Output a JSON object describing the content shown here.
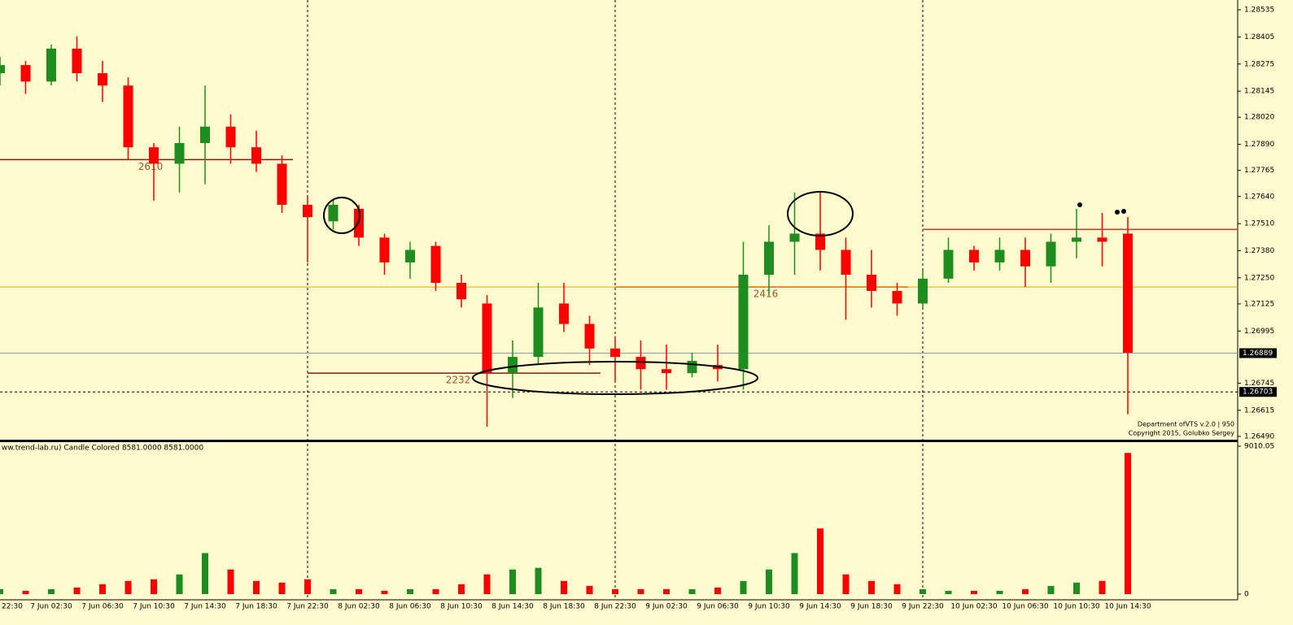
{
  "chart_data": {
    "type": "candlestick",
    "indicator_title": "ww.trend-lab.ru) Candle Colored 8581.0000 8581.0000",
    "notes": [
      "Department ofVTS  v.2.0 | 950",
      "Copyright 2015, Golubko Sergey"
    ],
    "categories": [
      "22:30",
      null,
      "7 Jun 02:30",
      null,
      "7 Jun 06:30",
      null,
      "7 Jun 10:30",
      null,
      "7 Jun 14:30",
      null,
      "7 Jun 18:30",
      null,
      "7 Jun 22:30",
      null,
      "8 Jun 02:30",
      null,
      "8 Jun 06:30",
      null,
      "8 Jun 10:30",
      null,
      "8 Jun 14:30",
      null,
      "8 Jun 18:30",
      null,
      "8 Jun 22:30",
      null,
      "9 Jun 02:30",
      null,
      "9 Jun 06:30",
      null,
      "9 Jun 10:30",
      null,
      "9 Jun 14:30",
      null,
      "9 Jun 18:30",
      null,
      "9 Jun 22:30",
      null,
      "10 Jun 02:30",
      null,
      "10 Jun 06:30",
      null,
      "10 Jun 10:30",
      null,
      "10 Jun 14:30"
    ],
    "open": [
      1.28231,
      1.2827,
      1.28191,
      1.28349,
      1.28231,
      1.28172,
      1.27876,
      1.27797,
      1.27896,
      1.27975,
      1.27876,
      1.27797,
      1.276,
      1.27521,
      1.27581,
      1.27443,
      1.27324,
      1.27403,
      1.27226,
      1.27127,
      1.26793,
      1.26871,
      1.27127,
      1.27029,
      1.26911,
      1.26871,
      1.26812,
      1.26793,
      1.26832,
      1.26812,
      1.27265,
      1.27423,
      1.27462,
      1.27384,
      1.27265,
      1.27187,
      1.27127,
      1.27246,
      1.27384,
      1.27324,
      1.27384,
      1.27305,
      1.27423,
      1.27443,
      1.27462
    ],
    "high": [
      1.28309,
      1.2829,
      1.28369,
      1.28408,
      1.2829,
      1.28211,
      1.27896,
      1.27975,
      1.28172,
      1.28034,
      1.27955,
      1.27837,
      1.2764,
      1.27628,
      1.276,
      1.27462,
      1.27423,
      1.27423,
      1.27265,
      1.27167,
      1.2695,
      1.27226,
      1.27226,
      1.27068,
      1.2697,
      1.2695,
      1.2693,
      1.26891,
      1.2693,
      1.27423,
      1.27502,
      1.27659,
      1.27659,
      1.27443,
      1.27384,
      1.27226,
      1.27285,
      1.27443,
      1.27403,
      1.27443,
      1.27443,
      1.27462,
      1.27581,
      1.27561,
      1.27541
    ],
    "low": [
      1.28172,
      1.28132,
      1.28172,
      1.28191,
      1.28093,
      1.27817,
      1.2762,
      1.27659,
      1.27699,
      1.27797,
      1.27758,
      1.27561,
      1.27324,
      1.27482,
      1.27403,
      1.27265,
      1.27246,
      1.27187,
      1.27108,
      1.26536,
      1.26674,
      1.26832,
      1.2699,
      1.26832,
      1.26753,
      1.26714,
      1.26714,
      1.26773,
      1.26753,
      1.26714,
      1.27167,
      1.27265,
      1.27285,
      1.27049,
      1.27108,
      1.27068,
      1.27108,
      1.27226,
      1.27285,
      1.27285,
      1.27206,
      1.27226,
      1.27344,
      1.27305,
      1.26596
    ],
    "close": [
      1.2827,
      1.28191,
      1.28349,
      1.28231,
      1.28172,
      1.27876,
      1.27797,
      1.27896,
      1.27975,
      1.27876,
      1.27797,
      1.276,
      1.27541,
      1.276,
      1.27443,
      1.27324,
      1.27384,
      1.27226,
      1.27147,
      1.26793,
      1.26871,
      1.27108,
      1.27029,
      1.26911,
      1.26871,
      1.26812,
      1.26793,
      1.26852,
      1.26812,
      1.27265,
      1.27423,
      1.27462,
      1.27384,
      1.27265,
      1.27187,
      1.27127,
      1.27246,
      1.27384,
      1.27324,
      1.27384,
      1.27305,
      1.27423,
      1.27443,
      1.27423,
      1.26891
    ],
    "up_color": "#1e8c1e",
    "down_color": "#ff0000",
    "ylim": [
      1.26474,
      1.28582
    ],
    "yticks": [
      1.28535,
      1.28405,
      1.28275,
      1.28145,
      {
        "value": 1.2802,
        "label": "1.28020"
      },
      {
        "value": 1.2789,
        "label": "1.27890"
      },
      1.27765,
      {
        "value": 1.2764,
        "label": "1.27640"
      },
      {
        "value": 1.2751,
        "label": "1.27510"
      },
      {
        "value": 1.2738,
        "label": "1.27380"
      },
      {
        "value": 1.2725,
        "label": "1.27250"
      },
      1.27125,
      1.26995,
      1.26745,
      1.26615,
      {
        "value": 1.2649,
        "label": "1.26490"
      }
    ],
    "price_lines": [
      {
        "value": 1.27206,
        "color": "#ffa500"
      },
      {
        "value": 1.26889,
        "color": "#8a9aa8",
        "labeled": true
      },
      {
        "value": 1.26703,
        "color": "#000000",
        "dashed": true,
        "labeled": true
      }
    ],
    "profiles": [
      {
        "label": "2610",
        "value": 1.27817,
        "color": "#8b1a1a"
      },
      {
        "label": "2232",
        "value": 1.26793,
        "color": "#8b1a1a"
      },
      {
        "label": "2416",
        "value": 1.27206,
        "color": "#8b1a1a"
      },
      {
        "value": 1.27482,
        "color": "#e03030"
      }
    ],
    "volume": {
      "values": [
        300,
        200,
        300,
        400,
        600,
        800,
        900,
        1200,
        2500,
        1500,
        800,
        700,
        900,
        300,
        300,
        200,
        300,
        300,
        600,
        1200,
        1500,
        1600,
        800,
        500,
        300,
        300,
        300,
        300,
        400,
        800,
        1500,
        2500,
        4000,
        1200,
        800,
        600,
        300,
        200,
        200,
        200,
        300,
        500,
        700,
        800,
        8600
      ],
      "ylim": [
        0,
        9010.05
      ],
      "yticks": [
        9010.05,
        0
      ]
    }
  }
}
